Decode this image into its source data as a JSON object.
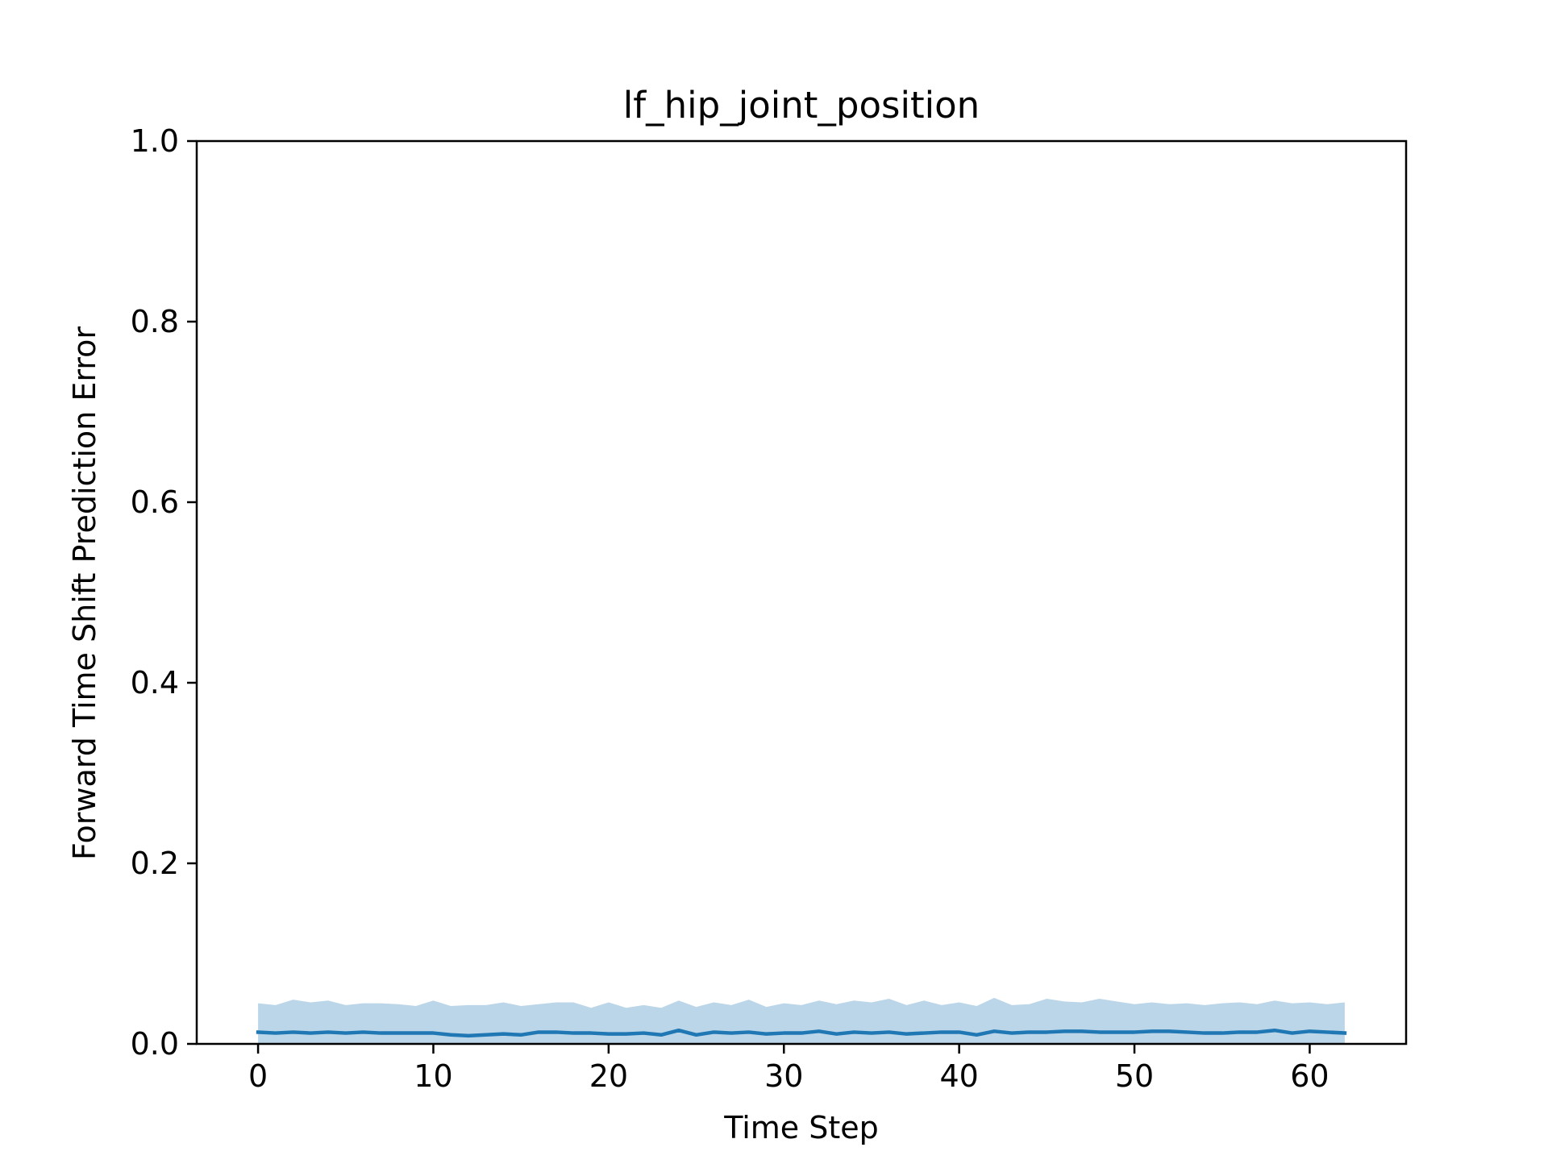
{
  "chart_data": {
    "type": "line",
    "title": "lf_hip_joint_position",
    "xlabel": "Time Step",
    "ylabel": "Forward Time Shift Prediction Error",
    "xlim": [
      -3.5,
      65.5
    ],
    "ylim": [
      0.0,
      1.0
    ],
    "xticks": [
      0,
      10,
      20,
      30,
      40,
      50,
      60
    ],
    "xtick_labels": [
      "0",
      "10",
      "20",
      "30",
      "40",
      "50",
      "60"
    ],
    "yticks": [
      0.0,
      0.2,
      0.4,
      0.6,
      0.8,
      1.0
    ],
    "ytick_labels": [
      "0.0",
      "0.2",
      "0.4",
      "0.6",
      "0.8",
      "1.0"
    ],
    "grid": false,
    "legend": false,
    "colors": {
      "line": "#1f77b4",
      "band": "#1f77b4",
      "band_opacity": 0.3,
      "axes": "#000000"
    },
    "series": [
      {
        "x": [
          0,
          1,
          2,
          3,
          4,
          5,
          6,
          7,
          8,
          9,
          10,
          11,
          12,
          13,
          14,
          15,
          16,
          17,
          18,
          19,
          20,
          21,
          22,
          23,
          24,
          25,
          26,
          27,
          28,
          29,
          30,
          31,
          32,
          33,
          34,
          35,
          36,
          37,
          38,
          39,
          40,
          41,
          42,
          43,
          44,
          45,
          46,
          47,
          48,
          49,
          50,
          51,
          52,
          53,
          54,
          55,
          56,
          57,
          58,
          59,
          60,
          61,
          62
        ],
        "mean": [
          0.013,
          0.012,
          0.013,
          0.012,
          0.013,
          0.012,
          0.013,
          0.012,
          0.012,
          0.012,
          0.012,
          0.01,
          0.009,
          0.01,
          0.011,
          0.01,
          0.013,
          0.013,
          0.012,
          0.012,
          0.011,
          0.011,
          0.012,
          0.01,
          0.015,
          0.01,
          0.013,
          0.012,
          0.013,
          0.011,
          0.012,
          0.012,
          0.014,
          0.011,
          0.013,
          0.012,
          0.013,
          0.011,
          0.012,
          0.013,
          0.013,
          0.01,
          0.014,
          0.012,
          0.013,
          0.013,
          0.014,
          0.014,
          0.013,
          0.013,
          0.013,
          0.014,
          0.014,
          0.013,
          0.012,
          0.012,
          0.013,
          0.013,
          0.015,
          0.012,
          0.014,
          0.013,
          0.012
        ],
        "upper": [
          0.045,
          0.043,
          0.049,
          0.046,
          0.048,
          0.043,
          0.045,
          0.045,
          0.044,
          0.042,
          0.048,
          0.042,
          0.043,
          0.043,
          0.046,
          0.042,
          0.044,
          0.046,
          0.046,
          0.04,
          0.046,
          0.04,
          0.043,
          0.04,
          0.048,
          0.041,
          0.046,
          0.043,
          0.049,
          0.041,
          0.045,
          0.043,
          0.048,
          0.044,
          0.048,
          0.046,
          0.05,
          0.043,
          0.048,
          0.043,
          0.046,
          0.042,
          0.051,
          0.043,
          0.044,
          0.05,
          0.047,
          0.046,
          0.05,
          0.047,
          0.044,
          0.046,
          0.044,
          0.045,
          0.043,
          0.045,
          0.046,
          0.044,
          0.048,
          0.045,
          0.046,
          0.044,
          0.046
        ],
        "lower": [
          0.0,
          0.0,
          0.0,
          0.0,
          0.0,
          0.0,
          0.0,
          0.0,
          0.0,
          0.0,
          0.0,
          0.0,
          0.0,
          0.0,
          0.0,
          0.0,
          0.0,
          0.0,
          0.0,
          0.0,
          0.0,
          0.0,
          0.0,
          0.0,
          0.0,
          0.0,
          0.0,
          0.0,
          0.0,
          0.0,
          0.0,
          0.0,
          0.0,
          0.0,
          0.0,
          0.0,
          0.0,
          0.0,
          0.0,
          0.0,
          0.0,
          0.0,
          0.0,
          0.0,
          0.0,
          0.0,
          0.0,
          0.0,
          0.0,
          0.0,
          0.0,
          0.0,
          0.0,
          0.0,
          0.0,
          0.0,
          0.0,
          0.0,
          0.0,
          0.0,
          0.0,
          0.0,
          0.0
        ]
      }
    ]
  }
}
